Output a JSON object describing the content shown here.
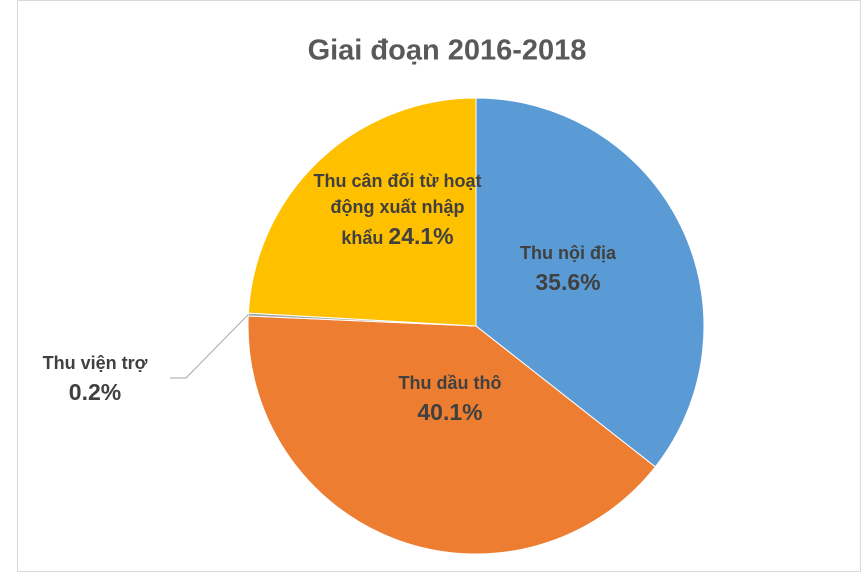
{
  "chart_data": {
    "type": "pie",
    "title": "Giai đoạn 2016-2018",
    "categories": [
      "Thu nội địa",
      "Thu dầu thô",
      "Thu viện trợ",
      "Thu cân đối từ hoạt động xuất nhập khẩu"
    ],
    "values": [
      35.6,
      40.1,
      0.2,
      24.1
    ],
    "value_labels": [
      "35.6%",
      "40.1%",
      "0.2%",
      "24.1%"
    ],
    "colors": [
      "#5b9bd5",
      "#ed7d31",
      "#a5a5a5",
      "#ffc000"
    ]
  }
}
